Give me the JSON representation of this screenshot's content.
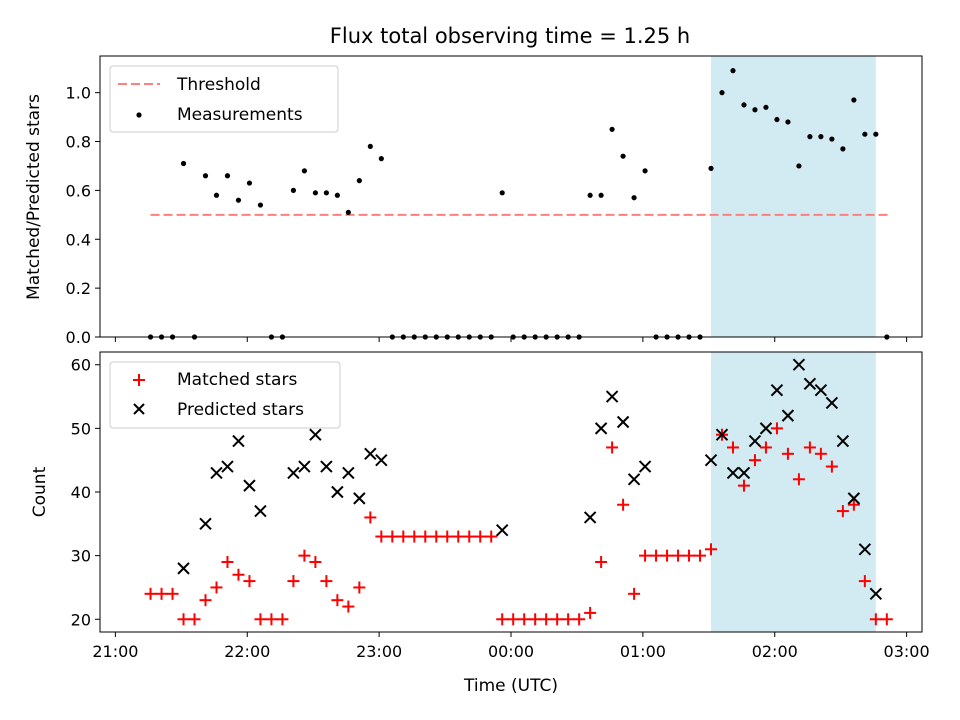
{
  "figure": {
    "title": "Flux total observing time = 1.25 h"
  },
  "chart_data": [
    {
      "type": "scatter",
      "title": "Flux total observing time = 1.25 h",
      "xlabel": "",
      "ylabel": "Matched/Predicted stars",
      "xlim": [
        "21:00",
        "03:00"
      ],
      "ylim": [
        0,
        1.15
      ],
      "y_ticks": [
        "0.0",
        "0.2",
        "0.4",
        "0.6",
        "0.8",
        "1.0"
      ],
      "legend_position": "upper-left",
      "highlight_span": [
        "01:31",
        "02:46"
      ],
      "highlight_color": "#add8e6",
      "threshold": {
        "name": "Threshold",
        "value": 0.5,
        "x_range": [
          "21:16",
          "02:52"
        ],
        "color": "#ff7f7f",
        "style": "dashed"
      },
      "series": [
        {
          "name": "Measurements",
          "color": "#000000",
          "marker": "dot",
          "points": [
            [
              "21:16",
              0.0
            ],
            [
              "21:21",
              0.0
            ],
            [
              "21:26",
              0.0
            ],
            [
              "21:31",
              0.71
            ],
            [
              "21:36",
              0.0
            ],
            [
              "21:41",
              0.66
            ],
            [
              "21:46",
              0.58
            ],
            [
              "21:51",
              0.66
            ],
            [
              "21:56",
              0.56
            ],
            [
              "22:01",
              0.63
            ],
            [
              "22:06",
              0.54
            ],
            [
              "22:11",
              0.0
            ],
            [
              "22:16",
              0.0
            ],
            [
              "22:21",
              0.6
            ],
            [
              "22:26",
              0.68
            ],
            [
              "22:31",
              0.59
            ],
            [
              "22:36",
              0.59
            ],
            [
              "22:41",
              0.58
            ],
            [
              "22:46",
              0.51
            ],
            [
              "22:51",
              0.64
            ],
            [
              "22:56",
              0.78
            ],
            [
              "23:01",
              0.73
            ],
            [
              "23:06",
              0.0
            ],
            [
              "23:11",
              0.0
            ],
            [
              "23:16",
              0.0
            ],
            [
              "23:21",
              0.0
            ],
            [
              "23:26",
              0.0
            ],
            [
              "23:31",
              0.0
            ],
            [
              "23:36",
              0.0
            ],
            [
              "23:41",
              0.0
            ],
            [
              "23:46",
              0.0
            ],
            [
              "23:51",
              0.0
            ],
            [
              "23:56",
              0.59
            ],
            [
              "00:01",
              0.0
            ],
            [
              "00:06",
              0.0
            ],
            [
              "00:11",
              0.0
            ],
            [
              "00:16",
              0.0
            ],
            [
              "00:21",
              0.0
            ],
            [
              "00:26",
              0.0
            ],
            [
              "00:31",
              0.0
            ],
            [
              "00:36",
              0.58
            ],
            [
              "00:41",
              0.58
            ],
            [
              "00:46",
              0.85
            ],
            [
              "00:51",
              0.74
            ],
            [
              "00:56",
              0.57
            ],
            [
              "01:01",
              0.68
            ],
            [
              "01:06",
              0.0
            ],
            [
              "01:11",
              0.0
            ],
            [
              "01:16",
              0.0
            ],
            [
              "01:21",
              0.0
            ],
            [
              "01:26",
              0.0
            ],
            [
              "01:31",
              0.69
            ],
            [
              "01:36",
              1.0
            ],
            [
              "01:41",
              1.09
            ],
            [
              "01:46",
              0.95
            ],
            [
              "01:51",
              0.93
            ],
            [
              "01:56",
              0.94
            ],
            [
              "02:01",
              0.89
            ],
            [
              "02:06",
              0.88
            ],
            [
              "02:11",
              0.7
            ],
            [
              "02:16",
              0.82
            ],
            [
              "02:21",
              0.82
            ],
            [
              "02:26",
              0.81
            ],
            [
              "02:31",
              0.77
            ],
            [
              "02:36",
              0.97
            ],
            [
              "02:41",
              0.83
            ],
            [
              "02:46",
              0.83
            ],
            [
              "02:51",
              0.0
            ]
          ]
        }
      ]
    },
    {
      "type": "scatter",
      "title": "",
      "xlabel": "Time (UTC)",
      "ylabel": "Count",
      "xlim": [
        "21:00",
        "03:00"
      ],
      "ylim": [
        18,
        62
      ],
      "x_ticks": [
        "21:00",
        "22:00",
        "23:00",
        "00:00",
        "01:00",
        "02:00",
        "03:00"
      ],
      "y_ticks": [
        "20",
        "30",
        "40",
        "50",
        "60"
      ],
      "legend_position": "upper-left",
      "highlight_span": [
        "01:31",
        "02:46"
      ],
      "highlight_color": "#add8e6",
      "series": [
        {
          "name": "Matched stars",
          "color": "#ff0000",
          "marker": "plus",
          "points": [
            [
              "21:16",
              24
            ],
            [
              "21:21",
              24
            ],
            [
              "21:26",
              24
            ],
            [
              "21:31",
              20
            ],
            [
              "21:36",
              20
            ],
            [
              "21:41",
              23
            ],
            [
              "21:46",
              25
            ],
            [
              "21:51",
              29
            ],
            [
              "21:56",
              27
            ],
            [
              "22:01",
              26
            ],
            [
              "22:06",
              20
            ],
            [
              "22:11",
              20
            ],
            [
              "22:16",
              20
            ],
            [
              "22:21",
              26
            ],
            [
              "22:26",
              30
            ],
            [
              "22:31",
              29
            ],
            [
              "22:36",
              26
            ],
            [
              "22:41",
              23
            ],
            [
              "22:46",
              22
            ],
            [
              "22:51",
              25
            ],
            [
              "22:56",
              36
            ],
            [
              "23:01",
              33
            ],
            [
              "23:06",
              33
            ],
            [
              "23:11",
              33
            ],
            [
              "23:16",
              33
            ],
            [
              "23:21",
              33
            ],
            [
              "23:26",
              33
            ],
            [
              "23:31",
              33
            ],
            [
              "23:36",
              33
            ],
            [
              "23:41",
              33
            ],
            [
              "23:46",
              33
            ],
            [
              "23:51",
              33
            ],
            [
              "23:56",
              20
            ],
            [
              "00:01",
              20
            ],
            [
              "00:06",
              20
            ],
            [
              "00:11",
              20
            ],
            [
              "00:16",
              20
            ],
            [
              "00:21",
              20
            ],
            [
              "00:26",
              20
            ],
            [
              "00:31",
              20
            ],
            [
              "00:36",
              21
            ],
            [
              "00:41",
              29
            ],
            [
              "00:46",
              47
            ],
            [
              "00:51",
              38
            ],
            [
              "00:56",
              24
            ],
            [
              "01:01",
              30
            ],
            [
              "01:06",
              30
            ],
            [
              "01:11",
              30
            ],
            [
              "01:16",
              30
            ],
            [
              "01:21",
              30
            ],
            [
              "01:26",
              30
            ],
            [
              "01:31",
              31
            ],
            [
              "01:36",
              49
            ],
            [
              "01:41",
              47
            ],
            [
              "01:46",
              41
            ],
            [
              "01:51",
              45
            ],
            [
              "01:56",
              47
            ],
            [
              "02:01",
              50
            ],
            [
              "02:06",
              46
            ],
            [
              "02:11",
              42
            ],
            [
              "02:16",
              47
            ],
            [
              "02:21",
              46
            ],
            [
              "02:26",
              44
            ],
            [
              "02:31",
              37
            ],
            [
              "02:36",
              38
            ],
            [
              "02:41",
              26
            ],
            [
              "02:46",
              20
            ],
            [
              "02:51",
              20
            ]
          ]
        },
        {
          "name": "Predicted stars",
          "color": "#000000",
          "marker": "x",
          "points": [
            [
              "21:31",
              28
            ],
            [
              "21:41",
              35
            ],
            [
              "21:46",
              43
            ],
            [
              "21:51",
              44
            ],
            [
              "21:56",
              48
            ],
            [
              "22:01",
              41
            ],
            [
              "22:06",
              37
            ],
            [
              "22:21",
              43
            ],
            [
              "22:26",
              44
            ],
            [
              "22:31",
              49
            ],
            [
              "22:36",
              44
            ],
            [
              "22:41",
              40
            ],
            [
              "22:46",
              43
            ],
            [
              "22:51",
              39
            ],
            [
              "22:56",
              46
            ],
            [
              "23:01",
              45
            ],
            [
              "23:56",
              34
            ],
            [
              "00:36",
              36
            ],
            [
              "00:41",
              50
            ],
            [
              "00:46",
              55
            ],
            [
              "00:51",
              51
            ],
            [
              "00:56",
              42
            ],
            [
              "01:01",
              44
            ],
            [
              "01:31",
              45
            ],
            [
              "01:36",
              49
            ],
            [
              "01:41",
              43
            ],
            [
              "01:46",
              43
            ],
            [
              "01:51",
              48
            ],
            [
              "01:56",
              50
            ],
            [
              "02:01",
              56
            ],
            [
              "02:06",
              52
            ],
            [
              "02:11",
              60
            ],
            [
              "02:16",
              57
            ],
            [
              "02:21",
              56
            ],
            [
              "02:26",
              54
            ],
            [
              "02:31",
              48
            ],
            [
              "02:36",
              39
            ],
            [
              "02:41",
              31
            ],
            [
              "02:46",
              24
            ]
          ]
        }
      ]
    }
  ]
}
